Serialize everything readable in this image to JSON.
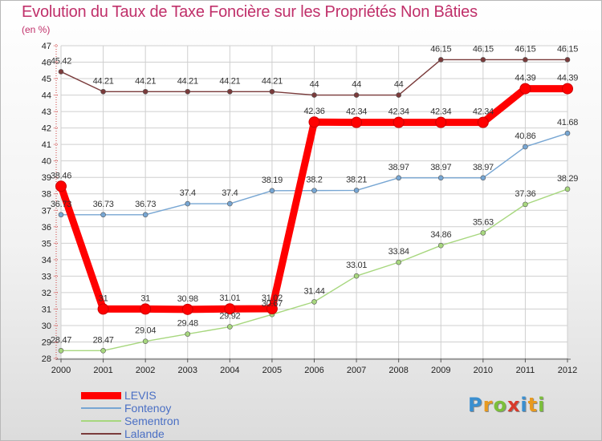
{
  "chart_data": {
    "type": "line",
    "title": "Evolution du Taux de Taxe Foncière sur les Propriétés Non Bâties",
    "subtitle": "(en %)",
    "xlabel": "",
    "ylabel": "",
    "x": [
      "2000",
      "2001",
      "2002",
      "2003",
      "2004",
      "2005",
      "2006",
      "2007",
      "2008",
      "2009",
      "2010",
      "2011",
      "2012"
    ],
    "ylim": [
      28,
      47
    ],
    "yticks": [
      "28",
      "29",
      "30",
      "31",
      "32",
      "33",
      "34",
      "35",
      "36",
      "37",
      "38",
      "39",
      "40",
      "41",
      "42",
      "43",
      "44",
      "45",
      "46",
      "47"
    ],
    "grid": true,
    "legend_position": "bottom-left",
    "series": [
      {
        "name": "LEVIS",
        "color": "#ff0000",
        "values": [
          38.46,
          31,
          31,
          30.98,
          31.01,
          31.02,
          42.36,
          42.34,
          42.34,
          42.34,
          42.34,
          44.39,
          44.39
        ],
        "labels": [
          "38.46",
          "31",
          "31",
          "30.98",
          "31.01",
          "31.02",
          "42.36",
          "42.34",
          "42.34",
          "42.34",
          "42.34",
          "44.39",
          "44.39"
        ]
      },
      {
        "name": "Fontenoy",
        "color": "#77a6d3",
        "values": [
          36.73,
          36.73,
          36.73,
          37.4,
          37.4,
          38.19,
          38.2,
          38.21,
          38.97,
          38.97,
          38.97,
          40.86,
          41.68
        ],
        "labels": [
          "36.73",
          "36.73",
          "36.73",
          "37.4",
          "37.4",
          "38.19",
          "38.2",
          "38.21",
          "38.97",
          "38.97",
          "38.97",
          "40.86",
          "41.68"
        ]
      },
      {
        "name": "Sementron",
        "color": "#a7d77e",
        "values": [
          28.47,
          28.47,
          29.04,
          29.48,
          29.92,
          30.67,
          31.44,
          33.01,
          33.84,
          34.86,
          35.63,
          37.36,
          38.29
        ],
        "labels": [
          "28.47",
          "28.47",
          "29.04",
          "29.48",
          "29.92",
          "30.67",
          "31.44",
          "33.01",
          "33.84",
          "34.86",
          "35.63",
          "37.36",
          "38.29"
        ]
      },
      {
        "name": "Lalande",
        "color": "#7a3b3b",
        "values": [
          45.42,
          44.21,
          44.21,
          44.21,
          44.21,
          44.21,
          44,
          44,
          44,
          46.15,
          46.15,
          46.15,
          46.15
        ],
        "labels": [
          "45.42",
          "44.21",
          "44.21",
          "44.21",
          "44.21",
          "44.21",
          "44",
          "44",
          "44",
          "46.15",
          "46.15",
          "46.15",
          "46.15"
        ]
      }
    ]
  },
  "logo": {
    "letters": [
      "P",
      "r",
      "o",
      "x",
      "i",
      "t",
      "i"
    ],
    "colors": [
      "#3a8fd0",
      "#e89a20",
      "#7bbf3a",
      "#d83a2a",
      "#3a8fd0",
      "#e89a20",
      "#7bbf3a"
    ]
  }
}
